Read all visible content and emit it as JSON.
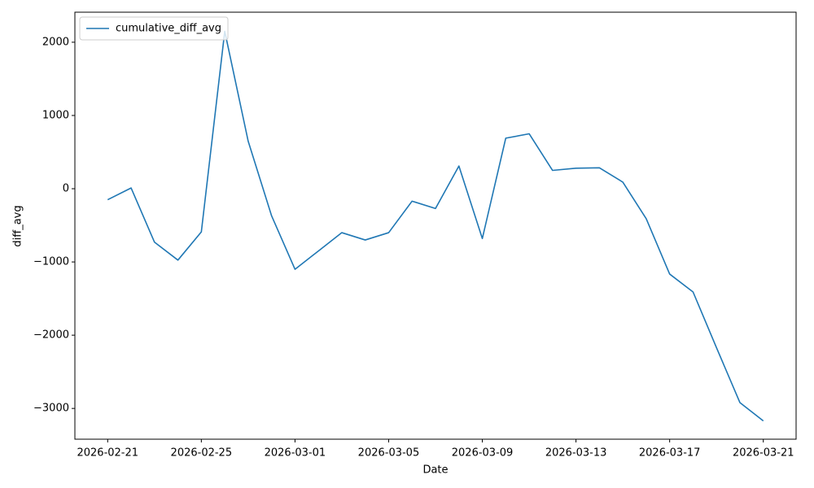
{
  "chart_data": {
    "type": "line",
    "xlabel": "Date",
    "ylabel": "diff_avg",
    "x": [
      "2026-02-21",
      "2026-02-22",
      "2026-02-23",
      "2026-02-24",
      "2026-02-25",
      "2026-02-26",
      "2026-02-27",
      "2026-02-28",
      "2026-03-01",
      "2026-03-02",
      "2026-03-03",
      "2026-03-04",
      "2026-03-05",
      "2026-03-06",
      "2026-03-07",
      "2026-03-08",
      "2026-03-09",
      "2026-03-10",
      "2026-03-11",
      "2026-03-12",
      "2026-03-13",
      "2026-03-14",
      "2026-03-15",
      "2026-03-16",
      "2026-03-17",
      "2026-03-18",
      "2026-03-19",
      "2026-03-20",
      "2026-03-21"
    ],
    "series": [
      {
        "name": "cumulative_diff_avg",
        "color": "#1f77b4",
        "values": [
          -150,
          10,
          -730,
          -975,
          -590,
          2150,
          650,
          -370,
          -1100,
          -850,
          -600,
          -700,
          -600,
          -170,
          -270,
          310,
          -680,
          690,
          750,
          250,
          280,
          285,
          90,
          -410,
          -1165,
          -1410,
          -2170,
          -2920,
          -3170
        ]
      }
    ],
    "xlim": [
      "2026-02-19T14:24",
      "2026-03-22T09:36"
    ],
    "xticks": [
      "2026-02-21",
      "2026-02-25",
      "2026-03-01",
      "2026-03-05",
      "2026-03-09",
      "2026-03-13",
      "2026-03-17",
      "2026-03-21"
    ],
    "ylim": [
      -3420,
      2410
    ],
    "yticks": [
      {
        "value": -3000,
        "label": "−3000"
      },
      {
        "value": -2000,
        "label": "−2000"
      },
      {
        "value": -1000,
        "label": "−1000"
      },
      0,
      1000,
      2000
    ],
    "grid": false,
    "legend": "upper left"
  }
}
